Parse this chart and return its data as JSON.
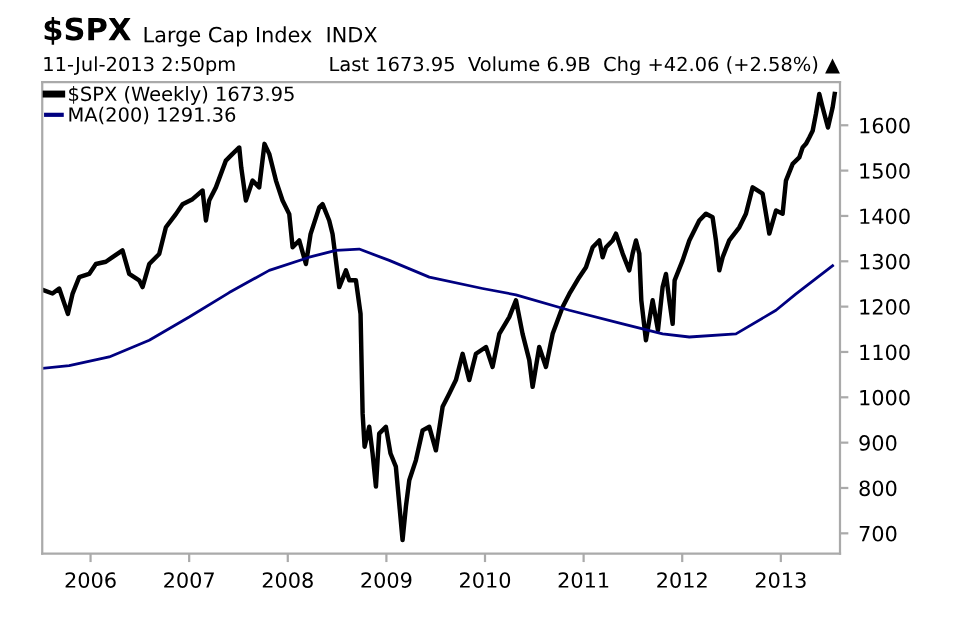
{
  "chart_data": {
    "type": "line",
    "title": "$SPX",
    "subtitle": "Large Cap Index  INDX",
    "annotations": [
      "11-Jul-2013 2:50pm",
      "Last 1673.95  Volume 6.9B  Chg +42.06 (+2.58%) ▲"
    ],
    "series": [
      {
        "name": "$SPX (Weekly) 1673.95",
        "color": "#000000",
        "x": [
          2005.527,
          2005.614,
          2005.682,
          2005.77,
          2005.817,
          2005.885,
          2005.986,
          2006.054,
          2006.155,
          2006.223,
          2006.324,
          2006.392,
          2006.493,
          2006.527,
          2006.595,
          2006.696,
          2006.764,
          2006.865,
          2006.933,
          2007.034,
          2007.136,
          2007.17,
          2007.203,
          2007.271,
          2007.372,
          2007.44,
          2007.508,
          2007.528,
          2007.575,
          2007.643,
          2007.71,
          2007.764,
          2007.812,
          2007.88,
          2007.947,
          2008.015,
          2008.049,
          2008.116,
          2008.184,
          2008.231,
          2008.319,
          2008.353,
          2008.42,
          2008.454,
          2008.488,
          2008.522,
          2008.59,
          2008.624,
          2008.691,
          2008.738,
          2008.759,
          2008.779,
          2008.826,
          2008.86,
          2008.894,
          2008.927,
          2008.995,
          2009.042,
          2009.096,
          2009.164,
          2009.198,
          2009.232,
          2009.299,
          2009.367,
          2009.435,
          2009.502,
          2009.57,
          2009.637,
          2009.705,
          2009.773,
          2009.84,
          2009.908,
          2010.01,
          2010.077,
          2010.145,
          2010.246,
          2010.314,
          2010.381,
          2010.449,
          2010.483,
          2010.55,
          2010.618,
          2010.686,
          2010.787,
          2010.855,
          2010.956,
          2011.024,
          2011.092,
          2011.159,
          2011.193,
          2011.227,
          2011.294,
          2011.328,
          2011.396,
          2011.463,
          2011.497,
          2011.531,
          2011.565,
          2011.585,
          2011.632,
          2011.7,
          2011.754,
          2011.801,
          2011.835,
          2011.869,
          2011.903,
          2011.923,
          2012.004,
          2012.072,
          2012.173,
          2012.241,
          2012.308,
          2012.342,
          2012.376,
          2012.41,
          2012.477,
          2012.579,
          2012.646,
          2012.714,
          2012.815,
          2012.883,
          2012.951,
          2013.018,
          2013.052,
          2013.12,
          2013.187,
          2013.221,
          2013.255,
          2013.289,
          2013.323,
          2013.356,
          2013.39,
          2013.424,
          2013.478,
          2013.525,
          2013.546
        ],
        "values": [
          1236,
          1229,
          1240,
          1184,
          1228,
          1265,
          1272,
          1294,
          1299,
          1309,
          1324,
          1272,
          1258,
          1243,
          1294,
          1316,
          1375,
          1404,
          1426,
          1437,
          1456,
          1390,
          1434,
          1463,
          1522,
          1537,
          1551,
          1507,
          1434,
          1478,
          1463,
          1559,
          1537,
          1478,
          1434,
          1404,
          1331,
          1346,
          1294,
          1360,
          1419,
          1426,
          1390,
          1360,
          1302,
          1243,
          1280,
          1258,
          1258,
          1184,
          964,
          891,
          935,
          876,
          803,
          920,
          935,
          876,
          847,
          685,
          759,
          817,
          861,
          927,
          935,
          883,
          979,
          1008,
          1038,
          1096,
          1038,
          1096,
          1111,
          1067,
          1140,
          1177,
          1214,
          1140,
          1082,
          1023,
          1111,
          1067,
          1140,
          1199,
          1228,
          1265,
          1287,
          1331,
          1346,
          1309,
          1331,
          1346,
          1361,
          1317,
          1280,
          1317,
          1346,
          1317,
          1214,
          1126,
          1214,
          1148,
          1243,
          1272,
          1214,
          1162,
          1258,
          1302,
          1346,
          1390,
          1405,
          1397,
          1346,
          1280,
          1309,
          1346,
          1375,
          1405,
          1463,
          1449,
          1361,
          1412,
          1405,
          1478,
          1515,
          1529,
          1551,
          1559,
          1573,
          1588,
          1625,
          1669,
          1639,
          1595,
          1639,
          1669
        ]
      },
      {
        "name": "MA(200) 1291.36",
        "color": "#000080",
        "x": [
          2005.513,
          2005.783,
          2006.189,
          2006.595,
          2007.0,
          2007.406,
          2007.812,
          2008.218,
          2008.488,
          2008.724,
          2009.029,
          2009.435,
          2009.975,
          2010.314,
          2010.855,
          2011.396,
          2011.801,
          2012.072,
          2012.545,
          2012.951,
          2013.154,
          2013.525
        ],
        "values": [
          1064,
          1070,
          1089,
          1126,
          1177,
          1231,
          1280,
          1309,
          1324,
          1327,
          1302,
          1265,
          1240,
          1226,
          1192,
          1162,
          1140,
          1133,
          1140,
          1192,
          1228,
          1290
        ]
      }
    ],
    "xlim": [
      2005.51,
      2013.6
    ],
    "xticks": [
      2006,
      2007,
      2008,
      2009,
      2010,
      2011,
      2012,
      2013
    ],
    "ylim": [
      655,
      1695
    ],
    "yticks": [
      700,
      800,
      900,
      1000,
      1100,
      1200,
      1300,
      1400,
      1500,
      1600
    ],
    "grid": false,
    "legend": "top left",
    "line_style": "solid",
    "marker": "none"
  }
}
